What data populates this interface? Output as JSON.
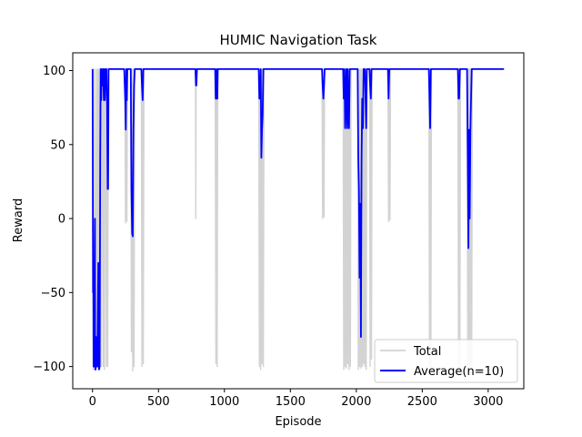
{
  "chart_data": {
    "type": "line",
    "title": "HUMIC Navigation Task",
    "xlabel": "Episode",
    "ylabel": "Reward",
    "xlim": [
      -150,
      3270
    ],
    "ylim": [
      -115,
      112
    ],
    "xticks": [
      0,
      500,
      1000,
      1500,
      2000,
      2500,
      3000
    ],
    "yticks": [
      -100,
      -50,
      0,
      50,
      100
    ],
    "xtick_labels": [
      "0",
      "500",
      "1000",
      "1500",
      "2000",
      "2500",
      "3000"
    ],
    "ytick_labels": [
      "−100",
      "−50",
      "0",
      "50",
      "100"
    ],
    "legend_position": "lower-right",
    "series": [
      {
        "name": "Total",
        "color": "#d3d3d3",
        "x": [
          0,
          5,
          8,
          12,
          15,
          20,
          25,
          30,
          35,
          40,
          45,
          50,
          55,
          60,
          65,
          70,
          75,
          80,
          85,
          90,
          95,
          100,
          105,
          110,
          115,
          120,
          125,
          130,
          200,
          245,
          250,
          255,
          260,
          265,
          270,
          280,
          290,
          295,
          300,
          305,
          310,
          315,
          320,
          330,
          370,
          375,
          380,
          385,
          390,
          400,
          780,
          783,
          786,
          790,
          930,
          935,
          940,
          945,
          950,
          960,
          1260,
          1265,
          1270,
          1275,
          1280,
          1285,
          1290,
          1295,
          1300,
          1310,
          1740,
          1745,
          1750,
          1755,
          1760,
          1770,
          1900,
          1905,
          1910,
          1915,
          1920,
          1925,
          1930,
          1935,
          1940,
          1945,
          1950,
          1955,
          1960,
          1970,
          2010,
          2015,
          2020,
          2025,
          2030,
          2035,
          2040,
          2045,
          2050,
          2055,
          2060,
          2065,
          2070,
          2075,
          2080,
          2090,
          2100,
          2105,
          2110,
          2115,
          2120,
          2130,
          2240,
          2245,
          2250,
          2255,
          2260,
          2270,
          2550,
          2555,
          2560,
          2565,
          2570,
          2580,
          2770,
          2775,
          2780,
          2785,
          2790,
          2800,
          2840,
          2845,
          2850,
          2855,
          2860,
          2865,
          2870,
          2875,
          2880,
          2890,
          3000,
          3120
        ],
        "y": [
          101,
          -102,
          101,
          -100,
          101,
          -102,
          -50,
          101,
          -100,
          101,
          -102,
          101,
          -60,
          101,
          -100,
          101,
          101,
          -100,
          101,
          -102,
          101,
          101,
          -100,
          101,
          -100,
          101,
          101,
          101,
          101,
          101,
          -3,
          101,
          -2,
          101,
          101,
          101,
          101,
          -90,
          101,
          -103,
          101,
          -100,
          101,
          101,
          101,
          -100,
          101,
          -98,
          101,
          101,
          101,
          0,
          101,
          101,
          101,
          -98,
          101,
          -100,
          101,
          101,
          101,
          -100,
          101,
          -102,
          101,
          -98,
          101,
          -100,
          101,
          101,
          101,
          0,
          101,
          1,
          101,
          101,
          101,
          -102,
          101,
          -100,
          101,
          -101,
          101,
          -98,
          101,
          -102,
          101,
          -100,
          101,
          101,
          101,
          -102,
          101,
          -100,
          101,
          -101,
          101,
          -100,
          101,
          -98,
          101,
          -100,
          101,
          -102,
          101,
          101,
          101,
          -100,
          101,
          -95,
          101,
          101,
          101,
          -2,
          101,
          -1,
          101,
          101,
          101,
          -100,
          101,
          -101,
          101,
          101,
          101,
          -100,
          101,
          -102,
          101,
          101,
          101,
          -100,
          101,
          -102,
          101,
          -99,
          101,
          -100,
          101,
          101,
          101,
          101
        ]
      },
      {
        "name": "Average(n=10)",
        "color": "#0000ff",
        "x": [
          0,
          2,
          4,
          6,
          8,
          10,
          14,
          18,
          20,
          24,
          28,
          32,
          36,
          40,
          44,
          48,
          50,
          54,
          58,
          62,
          66,
          70,
          74,
          80,
          86,
          90,
          94,
          98,
          105,
          110,
          115,
          118,
          122,
          126,
          130,
          200,
          240,
          248,
          252,
          256,
          260,
          264,
          270,
          290,
          295,
          300,
          305,
          310,
          315,
          320,
          325,
          330,
          370,
          375,
          380,
          385,
          390,
          780,
          784,
          788,
          792,
          930,
          934,
          938,
          942,
          946,
          950,
          1260,
          1265,
          1270,
          1275,
          1280,
          1285,
          1290,
          1295,
          1300,
          1740,
          1745,
          1750,
          1755,
          1760,
          1900,
          1905,
          1910,
          1915,
          1920,
          1925,
          1930,
          1935,
          1940,
          1945,
          1950,
          1955,
          1960,
          2010,
          2015,
          2020,
          2025,
          2030,
          2035,
          2040,
          2045,
          2050,
          2055,
          2060,
          2065,
          2070,
          2075,
          2080,
          2100,
          2105,
          2110,
          2115,
          2120,
          2240,
          2245,
          2250,
          2255,
          2550,
          2555,
          2560,
          2565,
          2570,
          2770,
          2775,
          2780,
          2785,
          2790,
          2840,
          2845,
          2850,
          2855,
          2860,
          2865,
          2870,
          2875,
          2880,
          2885,
          2890,
          3000,
          3120
        ],
        "y": [
          101,
          50,
          -50,
          -30,
          -100,
          -100,
          -60,
          0,
          -102,
          -102,
          -80,
          -100,
          -100,
          -60,
          -30,
          -100,
          -102,
          -100,
          40,
          101,
          80,
          101,
          90,
          101,
          80,
          101,
          80,
          101,
          101,
          80,
          20,
          20,
          101,
          101,
          101,
          101,
          101,
          80,
          60,
          101,
          80,
          101,
          101,
          101,
          20,
          -10,
          -12,
          60,
          90,
          101,
          101,
          101,
          101,
          90,
          80,
          101,
          101,
          101,
          90,
          90,
          101,
          101,
          81,
          81,
          101,
          81,
          101,
          101,
          81,
          81,
          101,
          41,
          60,
          70,
          101,
          101,
          101,
          90,
          81,
          90,
          101,
          101,
          81,
          101,
          61,
          81,
          101,
          61,
          101,
          71,
          61,
          101,
          101,
          101,
          101,
          40,
          20,
          -40,
          10,
          -80,
          40,
          81,
          61,
          101,
          101,
          101,
          81,
          61,
          101,
          101,
          90,
          81,
          101,
          101,
          101,
          81,
          101,
          101,
          101,
          81,
          61,
          101,
          101,
          101,
          81,
          81,
          101,
          101,
          101,
          40,
          -20,
          60,
          0,
          60,
          81,
          101,
          101,
          101,
          101,
          101,
          101
        ]
      }
    ]
  }
}
